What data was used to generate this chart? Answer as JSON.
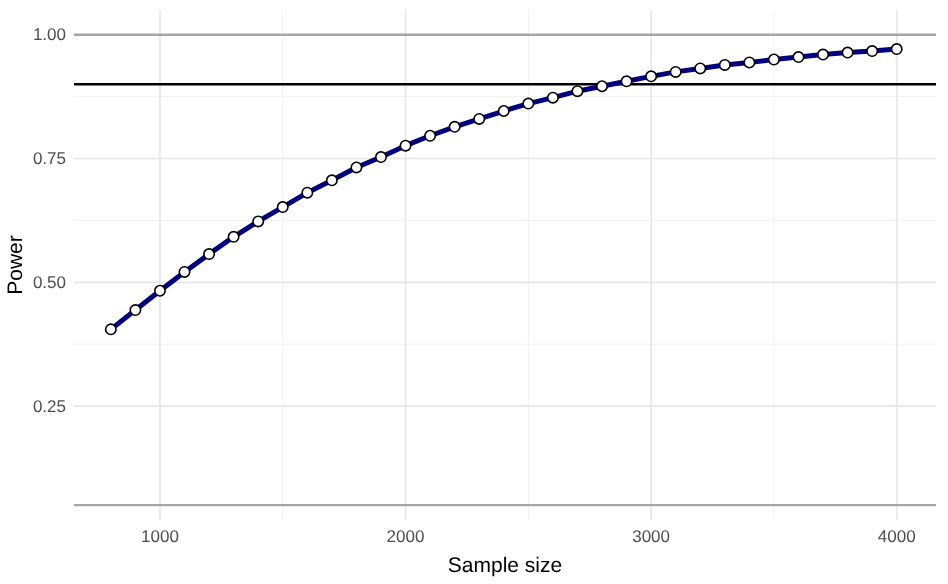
{
  "chart_data": {
    "type": "line",
    "xlabel": "Sample size",
    "ylabel": "Power",
    "x": [
      800,
      900,
      1000,
      1100,
      1200,
      1300,
      1400,
      1500,
      1600,
      1700,
      1800,
      1900,
      2000,
      2100,
      2200,
      2300,
      2400,
      2500,
      2600,
      2700,
      2800,
      2900,
      3000,
      3100,
      3200,
      3300,
      3400,
      3500,
      3600,
      3700,
      3800,
      3900,
      4000
    ],
    "series": [
      {
        "color": "#000080",
        "values": [
          0.405,
          0.444,
          0.483,
          0.521,
          0.557,
          0.592,
          0.623,
          0.652,
          0.681,
          0.706,
          0.732,
          0.753,
          0.776,
          0.796,
          0.814,
          0.83,
          0.846,
          0.861,
          0.873,
          0.886,
          0.896,
          0.906,
          0.916,
          0.925,
          0.932,
          0.939,
          0.944,
          0.95,
          0.955,
          0.96,
          0.964,
          0.967,
          0.971
        ]
      }
    ],
    "xlim": [
      650,
      4160
    ],
    "xticks": [
      1000,
      2000,
      3000,
      4000
    ],
    "ylim": [
      0.02,
      1.05
    ],
    "yticks": [
      {
        "value": 0.25,
        "label": "0.25"
      },
      {
        "value": 0.5,
        "label": "0.50"
      },
      {
        "value": 0.75,
        "label": "0.75"
      },
      {
        "value": 1,
        "label": "1.00"
      }
    ],
    "ref_lines": [
      {
        "axis": "y",
        "value": 1,
        "color": "#a6a6a6"
      },
      {
        "axis": "y",
        "value": 0.05,
        "color": "#a6a6a6"
      },
      {
        "axis": "y",
        "value": 0.9,
        "color": "#000000"
      }
    ],
    "grid": true,
    "marker": "circle",
    "line_style": "solid"
  }
}
